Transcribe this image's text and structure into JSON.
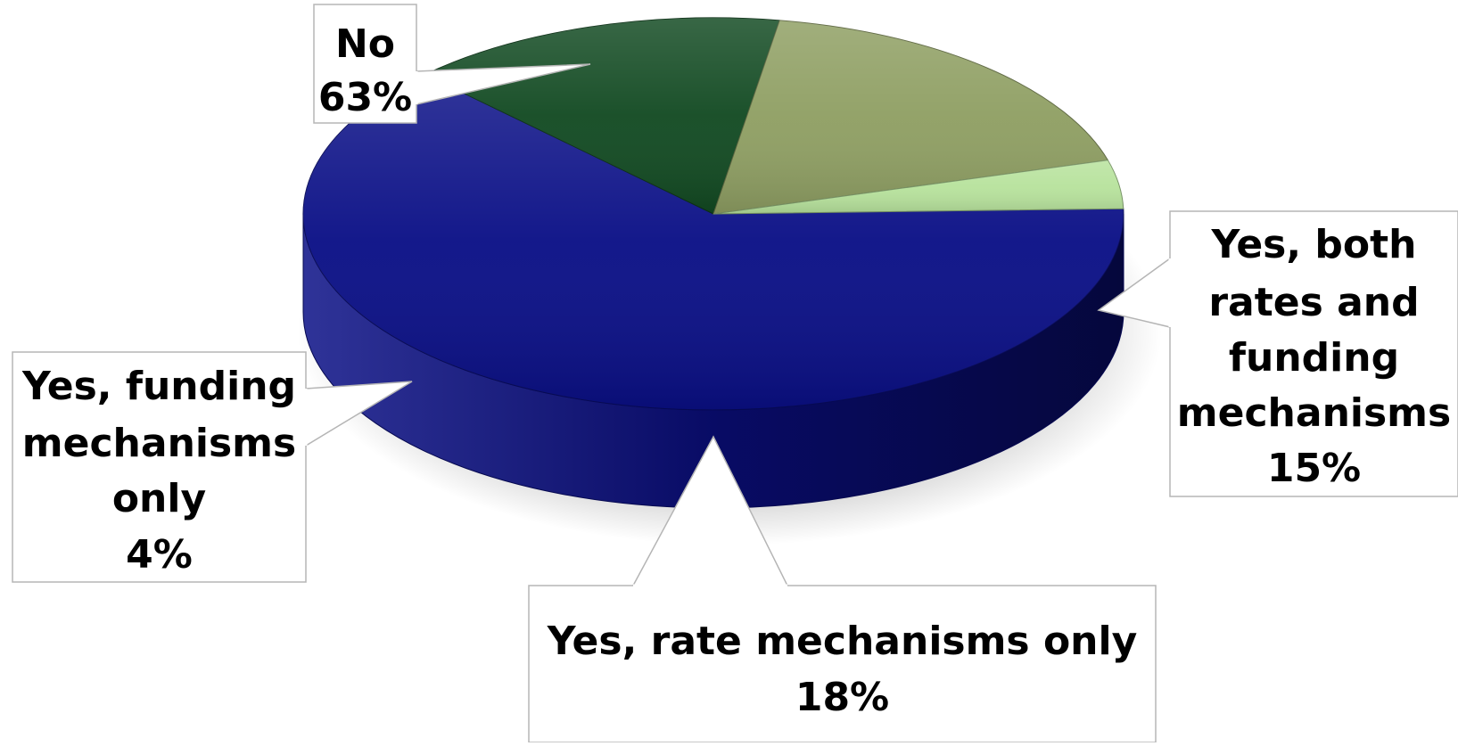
{
  "chart_data": {
    "type": "pie",
    "style": "3d",
    "slices": [
      {
        "label_lines": [
          "No"
        ],
        "value": 63,
        "value_text": "63%",
        "color": "#0a0f86"
      },
      {
        "label_lines": [
          "Yes, both",
          "rates and",
          "funding",
          "mechanisms"
        ],
        "value": 15,
        "value_text": "15%",
        "color": "#124a22"
      },
      {
        "label_lines": [
          "Yes, rate mechanisms only"
        ],
        "value": 18,
        "value_text": "18%",
        "color": "#8f9f63"
      },
      {
        "label_lines": [
          "Yes, funding",
          "mechanisms",
          "only"
        ],
        "value": 4,
        "value_text": "4%",
        "color": "#b7e29c"
      }
    ]
  }
}
